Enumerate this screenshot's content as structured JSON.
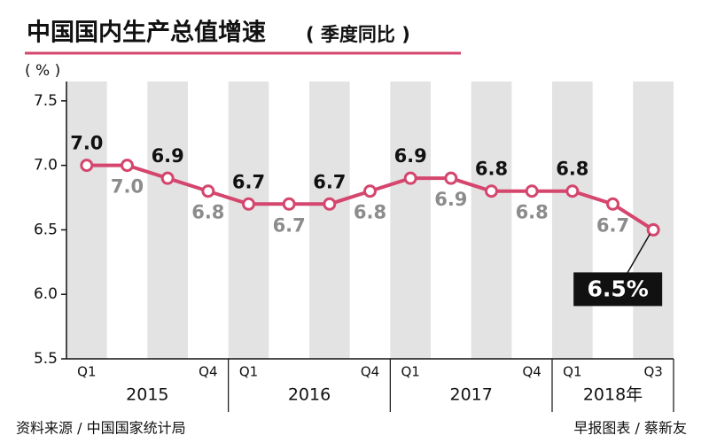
{
  "chart_data": {
    "type": "line",
    "title": "中国国内生产总值增速",
    "subtitle": "( 季度同比 )",
    "y_label": "( % )",
    "source": "资料来源 / 中国国家统计局",
    "credit": "早报图表 / 蔡新友",
    "categories": [
      "Q1",
      null,
      null,
      "Q4",
      "Q1",
      null,
      null,
      "Q4",
      "Q1",
      null,
      null,
      "Q4",
      "Q1",
      null,
      "Q3"
    ],
    "groups": [
      "2015",
      "2016",
      "2017",
      "2018年"
    ],
    "series": [
      {
        "name": "GDP",
        "color": "#d4466d",
        "values": [
          7.0,
          7.0,
          6.9,
          6.8,
          6.7,
          6.7,
          6.7,
          6.8,
          6.9,
          6.9,
          6.8,
          6.8,
          6.8,
          6.7,
          6.5
        ],
        "value_labels": [
          "7.0",
          "7.0",
          "6.9",
          "6.8",
          "6.7",
          "6.7",
          "6.7",
          "6.8",
          "6.9",
          "6.9",
          "6.8",
          "6.8",
          "6.8",
          "6.7",
          "6.5%"
        ]
      }
    ],
    "ylim": [
      5.5,
      7.65
    ],
    "yticks": [
      5.5,
      {
        "value": 6,
        "label": "6.0"
      },
      6.5,
      {
        "value": 7,
        "label": "7.0"
      },
      7.5
    ],
    "stripe_color": "#e3e3e3"
  }
}
